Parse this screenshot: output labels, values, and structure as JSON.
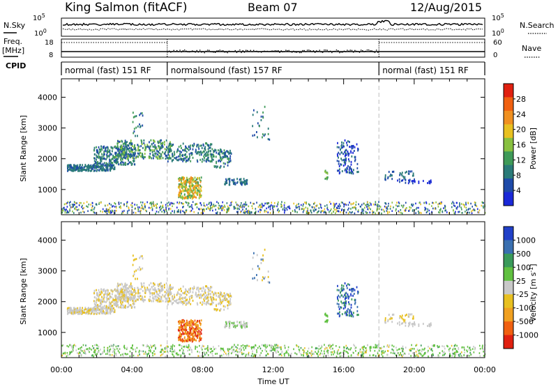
{
  "header": {
    "station": "King Salmon (fitACF)",
    "beam": "Beam 07",
    "date": "12/Aug/2015"
  },
  "side_labels": {
    "nsky": "N.Sky",
    "freq": "Freq.",
    "mhz": "[MHz]",
    "cpid": "CPID",
    "nsearch": "N.Search",
    "nave": "Nave",
    "nsky_top": "10^5",
    "nsky_bottom": "10^0",
    "nsearch_top": "10^5",
    "nsearch_bottom": "10^0",
    "freq_top": "18",
    "freq_bottom": "8",
    "nave_top": "60",
    "nave_bottom": "0"
  },
  "cpid_segments": [
    {
      "label": "normal (fast) 151 RF",
      "start": 0,
      "end": 6
    },
    {
      "label": "normalsound (fast) 157 RF",
      "start": 6,
      "end": 18
    },
    {
      "label": "normal (fast) 151 RF",
      "start": 18,
      "end": 24
    }
  ],
  "colors": {
    "power_scale": [
      "#1a28d8",
      "#1e4aa8",
      "#2a7a78",
      "#3f9a58",
      "#88c040",
      "#e8c020",
      "#f09020",
      "#f06010",
      "#e02010"
    ],
    "velocity_scale": [
      "#2040c8",
      "#3a70b0",
      "#3a9a5a",
      "#60c040",
      "#c8c8c8",
      "#e8c020",
      "#f0a020",
      "#f06010",
      "#e02010"
    ]
  },
  "chart_data": [
    {
      "type": "heatmap",
      "name_label": "Power [dB]",
      "xlabel": "",
      "ylabel": "Slant Range [km]",
      "xlim": [
        0,
        24
      ],
      "ylim": [
        180,
        4600
      ],
      "x_ticks": [
        "00:00",
        "04:00",
        "08:00",
        "12:00",
        "16:00",
        "20:00",
        "00:00"
      ],
      "y_ticks": [
        1000,
        2000,
        3000,
        4000
      ],
      "colorbar_ticks": [
        "4",
        "8",
        "12",
        "16",
        "20",
        "24",
        "28"
      ],
      "colorbar_range": [
        0,
        32
      ]
    },
    {
      "type": "heatmap",
      "name_label": "Velocity [m s^-1]",
      "xlabel": "Time UT",
      "ylabel": "Slant Range [km]",
      "xlim": [
        0,
        24
      ],
      "ylim": [
        180,
        4600
      ],
      "x_ticks": [
        "00:00",
        "04:00",
        "08:00",
        "12:00",
        "16:00",
        "20:00",
        "00:00"
      ],
      "y_ticks": [
        1000,
        2000,
        3000,
        4000
      ],
      "colorbar_ticks": [
        "1000",
        "500",
        "100",
        "25",
        "-25",
        "-100",
        "-500",
        "-1000"
      ],
      "colorbar_range": [
        -1000,
        1000
      ]
    }
  ]
}
